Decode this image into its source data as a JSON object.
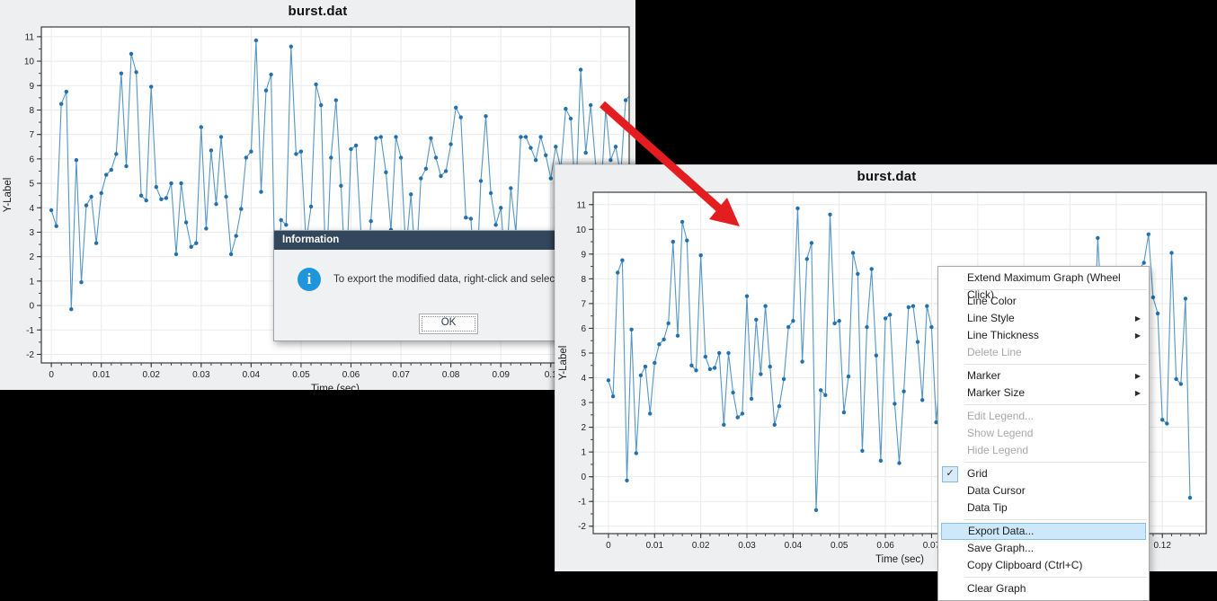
{
  "windows": {
    "win1": {
      "title": "burst.dat"
    },
    "win2": {
      "title": "burst.dat"
    }
  },
  "dialog": {
    "title": "Information",
    "message": "To export the modified data, right-click and select Expo",
    "ok_label": "OK",
    "title_bar_color": "#33475C",
    "icon_color": "#1E96DB",
    "icon_glyph": "i"
  },
  "context_menu": {
    "highlight_bg": "#CDE8FA",
    "highlight_border": "#84C0EA",
    "check_glyph": "✓",
    "submenu_glyph": "▶",
    "items": [
      {
        "label": "Extend Maximum Graph (Wheel Click)"
      },
      {
        "type": "separator"
      },
      {
        "label": "Line Color"
      },
      {
        "label": "Line Style",
        "submenu": true
      },
      {
        "label": "Line Thickness",
        "submenu": true
      },
      {
        "label": "Delete Line",
        "disabled": true
      },
      {
        "type": "separator"
      },
      {
        "label": "Marker",
        "submenu": true
      },
      {
        "label": "Marker Size",
        "submenu": true
      },
      {
        "type": "separator"
      },
      {
        "label": "Edit Legend...",
        "disabled": true
      },
      {
        "label": "Show Legend",
        "disabled": true
      },
      {
        "label": "Hide Legend",
        "disabled": true
      },
      {
        "type": "separator"
      },
      {
        "label": "Grid",
        "checked": true
      },
      {
        "label": "Data Cursor"
      },
      {
        "label": "Data Tip"
      },
      {
        "type": "separator"
      },
      {
        "label": "Export Data...",
        "highlighted": true
      },
      {
        "label": "Save Graph..."
      },
      {
        "label": "Copy Clipboard (Ctrl+C)"
      },
      {
        "type": "separator"
      },
      {
        "label": "Clear Graph"
      }
    ]
  },
  "arrow": {
    "color": "#E41E20"
  },
  "chart_data": [
    {
      "type": "line",
      "title": "burst.dat",
      "xlabel": "Time (sec)",
      "ylabel": "Y-Label",
      "x_start": 0,
      "x_step": 0.001,
      "xlim": [
        -0.002,
        0.1157
      ],
      "ylim": [
        -2.35,
        11.4
      ],
      "x_ticks": [
        0,
        0.01,
        0.02,
        0.03,
        0.04,
        0.05,
        0.06,
        0.07,
        0.08,
        0.09,
        0.1,
        0.11
      ],
      "y_ticks": [
        -2,
        -1,
        0,
        1,
        2,
        3,
        4,
        5,
        6,
        7,
        8,
        9,
        10,
        11
      ],
      "grid": true,
      "line_color": "#5596C4",
      "marker_color": "#2271AC",
      "values": [
        3.9,
        3.25,
        8.25,
        8.75,
        -0.15,
        5.95,
        0.95,
        4.1,
        4.45,
        2.55,
        4.6,
        5.35,
        5.55,
        6.2,
        9.5,
        5.7,
        10.3,
        9.55,
        4.5,
        4.3,
        8.95,
        4.85,
        4.35,
        4.4,
        5.0,
        2.1,
        5.0,
        3.4,
        2.4,
        2.55,
        7.3,
        3.15,
        6.35,
        4.15,
        6.9,
        4.45,
        2.1,
        2.85,
        3.95,
        6.05,
        6.3,
        10.85,
        4.65,
        8.8,
        9.45,
        -1.35,
        3.5,
        3.3,
        10.6,
        6.2,
        6.3,
        2.6,
        4.05,
        9.05,
        8.2,
        1.05,
        6.05,
        8.4,
        4.9,
        0.65,
        6.4,
        6.55,
        2.95,
        0.55,
        3.45,
        6.85,
        6.9,
        5.45,
        3.1,
        6.9,
        6.05,
        2.2,
        4.55,
        1.45,
        5.2,
        5.6,
        6.85,
        6.05,
        5.3,
        5.5,
        6.6,
        8.1,
        7.7,
        3.6,
        3.55,
        0.3,
        5.1,
        7.75,
        4.6,
        3.3,
        4.0,
        1.35,
        4.8,
        3.0,
        6.9,
        6.9,
        6.45,
        5.95,
        6.9,
        6.15,
        5.2,
        6.5,
        5.6,
        8.05,
        7.65,
        4.3,
        9.65,
        6.25,
        8.2,
        5.7,
        4.35,
        8.05,
        5.95,
        6.5,
        5.35,
        8.4,
        8.65,
        9.8,
        7.25,
        6.6,
        2.3,
        2.15,
        9.05,
        3.95,
        3.75,
        7.2,
        -0.85
      ]
    },
    {
      "type": "line",
      "title": "burst.dat",
      "xlabel": "Time (sec)",
      "ylabel": "Y-Label",
      "x_start": 0,
      "x_step": 0.001,
      "xlim": [
        -0.0033,
        0.1295
      ],
      "ylim": [
        -2.3,
        11.5
      ],
      "x_ticks": [
        0,
        0.01,
        0.02,
        0.03,
        0.04,
        0.05,
        0.06,
        0.07,
        0.08,
        0.09,
        0.1,
        0.11,
        0.12
      ],
      "y_ticks": [
        -2,
        -1,
        0,
        1,
        2,
        3,
        4,
        5,
        6,
        7,
        8,
        9,
        10,
        11
      ],
      "grid": true,
      "line_color": "#5596C4",
      "marker_color": "#2271AC",
      "values_from": 0
    }
  ]
}
